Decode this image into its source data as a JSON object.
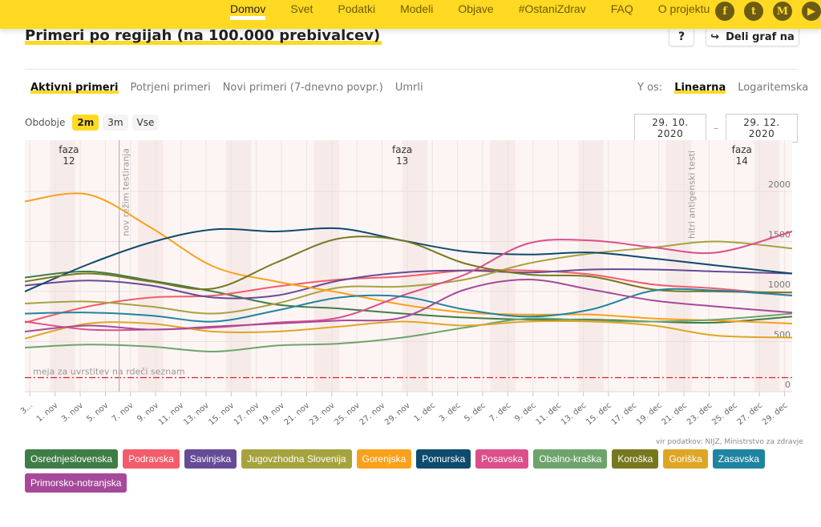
{
  "nav": {
    "items": [
      "Domov",
      "Svet",
      "Podatki",
      "Modeli",
      "Objave",
      "#OstaniZdrav",
      "FAQ",
      "O projektu"
    ],
    "active": "Domov",
    "social": [
      {
        "icon": "facebook-icon",
        "glyph": "f"
      },
      {
        "icon": "twitter-icon",
        "glyph": "t"
      },
      {
        "icon": "medium-icon",
        "glyph": "M"
      },
      {
        "icon": "youtube-icon",
        "glyph": "▶"
      }
    ]
  },
  "header": {
    "title": "Primeri po regijah (na 100.000 prebivalcev)",
    "help_label": "?",
    "share_label": "Deli graf na",
    "share_icon": "↪"
  },
  "tabs": {
    "items": [
      "Aktivni primeri",
      "Potrjeni primeri",
      "Novi primeri (7-dnevno povpr.)",
      "Umrli"
    ],
    "active": "Aktivni primeri"
  },
  "yaxis": {
    "label": "Y os:",
    "options": [
      "Linearna",
      "Logaritemska"
    ],
    "active": "Linearna"
  },
  "period": {
    "label": "Obdobje",
    "options": [
      "2m",
      "3m",
      "Vse"
    ],
    "active": "2m"
  },
  "date_range": {
    "from": "29. 10. 2020",
    "separator": "–",
    "to": "29. 12. 2020"
  },
  "source": "vir podatkov: NIJZ, Ministrstvo za zdravje",
  "chart_data": {
    "type": "line",
    "title": "Primeri po regijah (na 100.000 prebivalcev)",
    "xlabel": "",
    "ylabel": "",
    "ylim": [
      0,
      2200
    ],
    "yticks": [
      0,
      500,
      1000,
      1500,
      2000
    ],
    "grid": true,
    "xtick_labels": [
      "3...",
      "1. nov",
      "3. nov",
      "5. nov",
      "7. nov",
      "9. nov",
      "11. nov",
      "13. nov",
      "15. nov",
      "17. nov",
      "19. nov",
      "21. nov",
      "23. nov",
      "25. nov",
      "27. nov",
      "29. nov",
      "1. dec",
      "3. dec",
      "5. dec",
      "7. dec",
      "9. dec",
      "11. dec",
      "13. dec",
      "15. dec",
      "17. dec",
      "19. dec",
      "21. dec",
      "23. dec",
      "25. dec",
      "27. dec",
      "29. dec"
    ],
    "x_days": [
      0,
      5,
      10,
      15,
      20,
      25,
      30,
      35,
      40,
      45,
      50,
      55,
      61
    ],
    "x_start_date": "29. 10. 2020",
    "x_end_date": "29. 12. 2020",
    "phases": [
      {
        "label": "faza",
        "number": "12",
        "day": 3.5
      },
      {
        "label": "faza",
        "number": "13",
        "day": 30
      },
      {
        "label": "faza",
        "number": "14",
        "day": 57
      }
    ],
    "annotations": [
      {
        "text": "nov režim testiranja",
        "day": 7.5
      },
      {
        "text": "hitri antigenski testi",
        "day": 52.5
      }
    ],
    "threshold": {
      "value": 140,
      "label": "meja za uvrstitev na rdeči seznam",
      "color": "#d62728"
    },
    "series": [
      {
        "name": "Osrednjeslovenska",
        "color": "#3f7d46",
        "values": [
          1140,
          1200,
          1110,
          1000,
          870,
          830,
          780,
          740,
          720,
          720,
          700,
          690,
          750
        ]
      },
      {
        "name": "Podravska",
        "color": "#f25c6b",
        "values": [
          690,
          850,
          940,
          960,
          1050,
          1120,
          1150,
          1210,
          1210,
          1170,
          1070,
          1030,
          960
        ]
      },
      {
        "name": "Savinjska",
        "color": "#664b96",
        "values": [
          1060,
          1110,
          1060,
          940,
          960,
          1110,
          1190,
          1210,
          1190,
          1220,
          1220,
          1200,
          1180
        ]
      },
      {
        "name": "Jugovzhodna Slovenija",
        "color": "#a6a33e",
        "values": [
          880,
          900,
          850,
          780,
          880,
          1040,
          1050,
          1120,
          1280,
          1380,
          1440,
          1500,
          1430
        ]
      },
      {
        "name": "Gorenjska",
        "color": "#f9a11b",
        "values": [
          1900,
          1970,
          1640,
          1250,
          1100,
          990,
          870,
          790,
          770,
          770,
          730,
          710,
          680
        ]
      },
      {
        "name": "Pomurska",
        "color": "#0e4a6d",
        "values": [
          1000,
          1270,
          1490,
          1620,
          1600,
          1630,
          1510,
          1400,
          1370,
          1390,
          1330,
          1260,
          1180
        ]
      },
      {
        "name": "Posavska",
        "color": "#dc4f8b",
        "values": [
          700,
          620,
          620,
          640,
          690,
          740,
          960,
          1170,
          1480,
          1510,
          1440,
          1390,
          1600
        ]
      },
      {
        "name": "Obalno-kraška",
        "color": "#6ea46c",
        "values": [
          440,
          470,
          450,
          400,
          460,
          480,
          540,
          640,
          730,
          710,
          700,
          720,
          780
        ]
      },
      {
        "name": "Koroška",
        "color": "#77781e",
        "values": [
          1100,
          1180,
          1100,
          1030,
          1290,
          1530,
          1510,
          1280,
          1170,
          1150,
          1020,
          1000,
          990
        ]
      },
      {
        "name": "Goriška",
        "color": "#dfa525",
        "values": [
          530,
          680,
          680,
          600,
          600,
          650,
          700,
          660,
          700,
          700,
          660,
          560,
          540
        ]
      },
      {
        "name": "Zasavska",
        "color": "#1f84a0",
        "values": [
          780,
          790,
          760,
          700,
          810,
          940,
          950,
          820,
          750,
          820,
          1010,
          1010,
          960
        ]
      },
      {
        "name": "Primorsko-notranjska",
        "color": "#a6499a",
        "values": [
          600,
          660,
          620,
          650,
          680,
          710,
          740,
          1020,
          1120,
          1020,
          910,
          850,
          790
        ]
      }
    ]
  }
}
